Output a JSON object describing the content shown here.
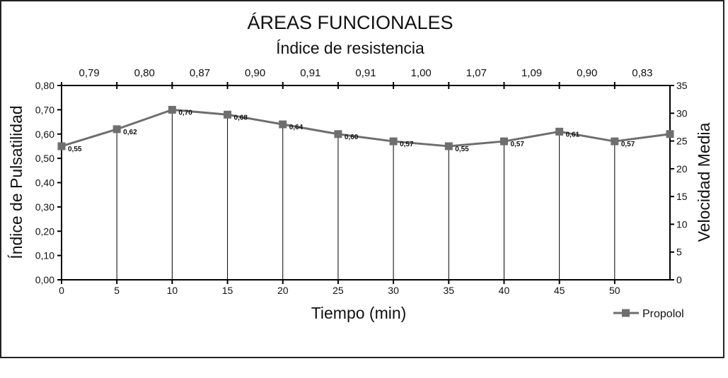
{
  "chart_data": {
    "type": "line",
    "title": "ÁREAS FUNCIONALES",
    "subtitle": "Índice de resistencia",
    "xlabel": "Tiempo (min)",
    "ylabel": "Índice de Pulsatilidad",
    "y2label": "Velocidad Media",
    "x": [
      0,
      5,
      10,
      15,
      20,
      25,
      30,
      35,
      40,
      45,
      50,
      55
    ],
    "xticks": [
      "0",
      "5",
      "10",
      "15",
      "20",
      "25",
      "30",
      "35",
      "40",
      "45",
      "50"
    ],
    "xlim": [
      0,
      55
    ],
    "ylim": [
      0,
      0.8
    ],
    "yticks": [
      "0,00",
      "0,10",
      "0,20",
      "0,30",
      "0,40",
      "0,50",
      "0,60",
      "0,70",
      "0,80"
    ],
    "y2lim": [
      0,
      35
    ],
    "y2ticks": [
      "0",
      "5",
      "10",
      "15",
      "20",
      "25",
      "30",
      "35"
    ],
    "series": [
      {
        "name": "Propolol",
        "color": "#6e6e6e",
        "values": [
          0.55,
          0.62,
          0.7,
          0.68,
          0.64,
          0.6,
          0.57,
          0.55,
          0.57,
          0.61,
          0.57,
          0.6
        ],
        "labels": [
          "0,55",
          "0,62",
          "0,70",
          "0,68",
          "0,64",
          "0,60",
          "0,57",
          "0,55",
          "0,57",
          "0,61",
          "0,57",
          ""
        ]
      }
    ],
    "resistance_index": {
      "x": [
        2.5,
        7.5,
        12.5,
        17.5,
        22.5,
        27.5,
        32.5,
        37.5,
        42.5,
        47.5,
        52.5
      ],
      "labels": [
        "0,79",
        "0,80",
        "0,87",
        "0,90",
        "0,91",
        "0,91",
        "1,00",
        "1,07",
        "1,09",
        "0,90",
        "0,83"
      ]
    },
    "legend_position": "bottom-right",
    "grid": false
  }
}
